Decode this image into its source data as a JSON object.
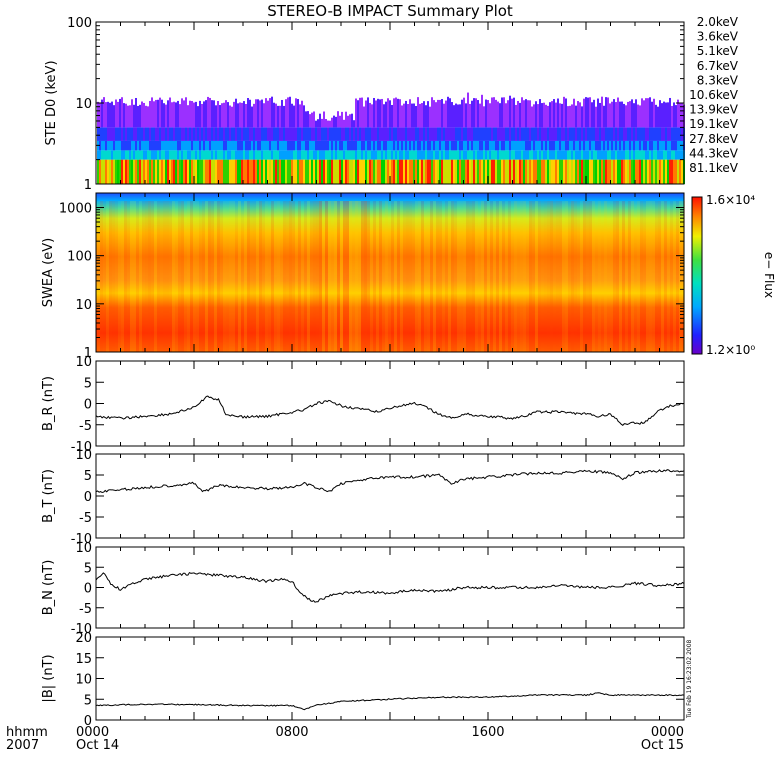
{
  "title": "STEREO-B IMPACT Summary Plot",
  "time_axis": {
    "row1_label": "hhmm",
    "row2_label": "2007",
    "ticks": [
      {
        "hhmm": "0000",
        "date": "Oct 14",
        "hour": 0
      },
      {
        "hhmm": "0800",
        "date": "",
        "hour": 8
      },
      {
        "hhmm": "1600",
        "date": "",
        "hour": 16
      },
      {
        "hhmm": "0000",
        "date": "Oct 15",
        "hour": 24
      }
    ]
  },
  "colorbar": {
    "label": "e− Flux",
    "max_label": "1.6×10⁴",
    "min_label": "1.2×10⁰"
  },
  "footnote": "Tue Feb 19 16:23:02 2008",
  "legend": [
    {
      "text": "2.0keV",
      "color": "#9b30ff"
    },
    {
      "text": "3.6keV",
      "color": "#5a20ff"
    },
    {
      "text": "5.1keV",
      "color": "#2040ff"
    },
    {
      "text": "6.7keV",
      "color": "#00a0ff"
    },
    {
      "text": "8.3keV",
      "color": "#00d8d0"
    },
    {
      "text": "10.6keV",
      "color": "#00d000"
    },
    {
      "text": "13.9keV",
      "color": "#30d000"
    },
    {
      "text": "19.1keV",
      "color": "#c8e000"
    },
    {
      "text": "27.8keV",
      "color": "#ffd000"
    },
    {
      "text": "44.3keV",
      "color": "#ff7a00"
    },
    {
      "text": "81.1keV",
      "color": "#ff2000"
    }
  ],
  "chart_data": [
    {
      "type": "line",
      "ylabel": "STE D0 (keV)",
      "scale": "log",
      "ylim": [
        1,
        100
      ],
      "yticks": [
        "1",
        "10",
        "100"
      ],
      "note": "stacked colored channel spikes; upper envelope ~8–12, peaks ~15 near hour 16"
    },
    {
      "type": "heatmap",
      "ylabel": "SWEA (eV)",
      "scale": "log",
      "ylim": [
        1,
        2000
      ],
      "yticks": [
        "1",
        "10",
        "100",
        "1000"
      ]
    },
    {
      "type": "line",
      "ylabel": "B_R (nT)",
      "ylim": [
        -10,
        10
      ],
      "yticks": [
        "-10",
        "-5",
        "0",
        "5",
        "10"
      ],
      "x_hours": [
        0,
        1,
        2,
        3,
        4,
        4.5,
        5,
        5.3,
        5.8,
        6,
        7,
        8,
        8.5,
        9,
        9.5,
        10,
        10.5,
        11,
        11.5,
        12,
        13,
        13.5,
        14,
        14.5,
        15,
        16,
        17,
        17.5,
        18,
        19,
        20,
        20.5,
        21,
        21.5,
        22,
        22.2,
        22.5,
        23,
        23.5,
        24
      ],
      "values": [
        -3,
        -3.5,
        -3,
        -2.5,
        -1,
        1.5,
        1,
        -2.5,
        -3,
        -3.2,
        -3,
        -2,
        -1.5,
        0,
        0.5,
        -0.5,
        -1,
        -1.5,
        -2,
        -1,
        0,
        -1,
        -2.5,
        -3.5,
        -2.5,
        -3,
        -3.5,
        -3,
        -2,
        -2,
        -2.5,
        -3,
        -2.5,
        -5,
        -4.5,
        -4.8,
        -4,
        -1.5,
        -0.5,
        0
      ]
    },
    {
      "type": "line",
      "ylabel": "B_T (nT)",
      "ylim": [
        -10,
        10
      ],
      "yticks": [
        "-10",
        "-5",
        "0",
        "5",
        "10"
      ],
      "x_hours": [
        0,
        1,
        2,
        3,
        4,
        4.4,
        5,
        6,
        7,
        8,
        8.5,
        9,
        9.5,
        10,
        11,
        12,
        13,
        14,
        14.5,
        15,
        16,
        17,
        18,
        19,
        20,
        21,
        21.5,
        22,
        23,
        24
      ],
      "values": [
        1,
        1.5,
        2,
        2.5,
        3,
        1,
        2.5,
        2,
        1.8,
        2,
        3,
        2,
        1,
        3,
        4,
        4.5,
        4.5,
        5,
        3,
        4,
        4.5,
        5,
        5.5,
        5.5,
        6,
        5.5,
        4,
        5.5,
        6,
        6
      ]
    },
    {
      "type": "line",
      "ylabel": "B_N (nT)",
      "ylim": [
        -10,
        10
      ],
      "yticks": [
        "-10",
        "-5",
        "0",
        "5",
        "10"
      ],
      "x_hours": [
        0,
        0.3,
        0.6,
        1,
        1.5,
        2,
        3,
        4,
        5,
        6,
        7,
        7.5,
        8,
        8.3,
        8.7,
        9,
        9.5,
        10,
        11,
        12,
        13,
        14,
        15,
        16,
        17,
        18,
        19,
        20,
        21,
        22,
        23,
        24
      ],
      "values": [
        2,
        3.5,
        1,
        -0.5,
        1,
        2,
        3,
        3.5,
        3,
        2.5,
        1.5,
        2,
        1.5,
        -1,
        -3,
        -3.5,
        -2,
        -1.5,
        -1,
        -1.5,
        -0.5,
        -1,
        0,
        0,
        0,
        0,
        0.5,
        0,
        0,
        1,
        0.5,
        1
      ]
    },
    {
      "type": "line",
      "ylabel": "|B| (nT)",
      "ylim": [
        0,
        20
      ],
      "yticks": [
        "0",
        "5",
        "10",
        "15",
        "20"
      ],
      "x_hours": [
        0,
        2,
        4,
        6,
        8,
        8.5,
        9,
        9.5,
        10,
        12,
        14,
        16,
        18,
        20,
        20.5,
        21,
        22,
        24
      ],
      "values": [
        3.5,
        3.8,
        3.7,
        3.5,
        3.5,
        2.5,
        3.7,
        4,
        4.5,
        5,
        5.5,
        5.5,
        6,
        6,
        6.5,
        6,
        6,
        6
      ]
    }
  ]
}
